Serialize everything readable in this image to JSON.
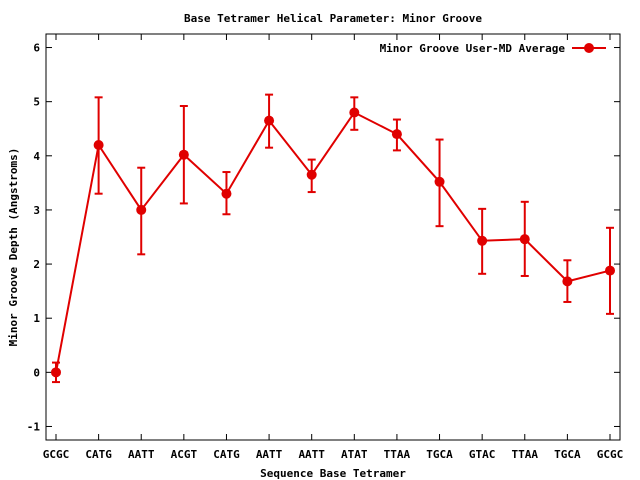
{
  "chart_data": {
    "type": "line",
    "title": "Base Tetramer Helical Parameter: Minor Groove",
    "xlabel": "Sequence Base Tetramer",
    "ylabel": "Minor Groove Depth (Angstroms)",
    "ylim": [
      -1.25,
      6.25
    ],
    "yticks": [
      -1,
      0,
      1,
      2,
      3,
      4,
      5,
      6
    ],
    "grid": false,
    "legend_position": "top-right",
    "categories": [
      "GCGC",
      "CATG",
      "AATT",
      "ACGT",
      "CATG",
      "AATT",
      "AATT",
      "ATAT",
      "TTAA",
      "TGCA",
      "GTAC",
      "TTAA",
      "TGCA",
      "GCGC"
    ],
    "series": [
      {
        "name": "Minor Groove User-MD Average",
        "color": "#e00000",
        "values": [
          0.0,
          4.2,
          3.0,
          4.02,
          3.3,
          4.65,
          3.65,
          4.8,
          4.4,
          3.52,
          2.43,
          2.46,
          1.68,
          1.88
        ],
        "err_low": [
          -0.18,
          3.3,
          2.18,
          3.12,
          2.92,
          4.15,
          3.33,
          4.48,
          4.1,
          2.7,
          1.82,
          1.78,
          1.3,
          1.08
        ],
        "err_high": [
          0.18,
          5.08,
          3.78,
          4.92,
          3.7,
          5.13,
          3.93,
          5.08,
          4.67,
          4.3,
          3.02,
          3.15,
          2.07,
          2.67
        ]
      }
    ]
  }
}
